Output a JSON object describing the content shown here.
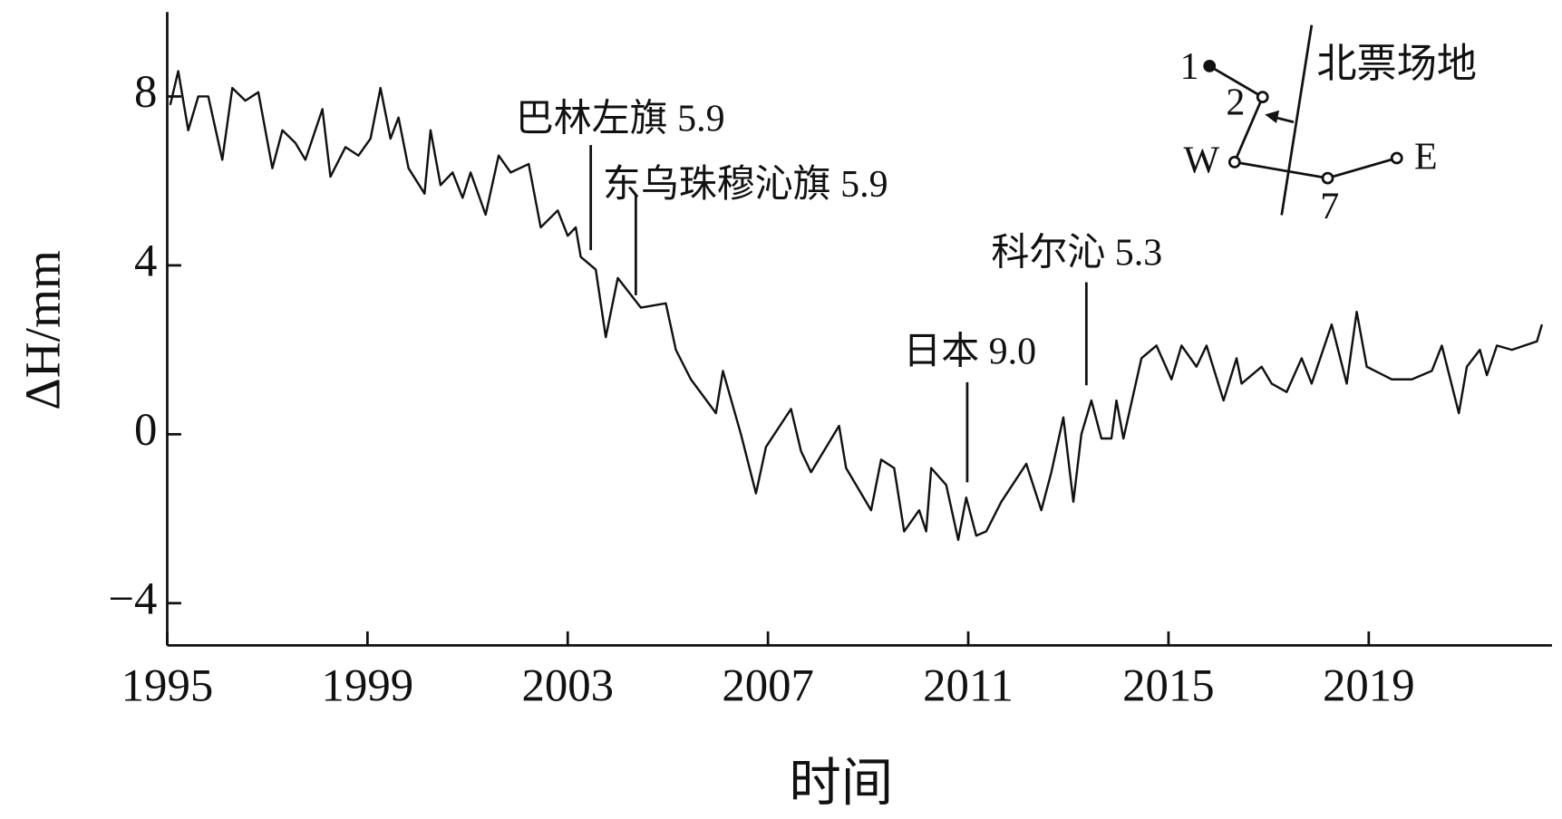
{
  "chart_data": {
    "type": "line",
    "xlabel": "时间",
    "ylabel": "ΔH/mm",
    "x": [
      1995.06,
      1995.22,
      1995.42,
      1995.62,
      1995.82,
      1996.1,
      1996.3,
      1996.56,
      1996.82,
      1997.1,
      1997.3,
      1997.56,
      1997.76,
      1998.1,
      1998.26,
      1998.56,
      1998.82,
      1999.06,
      1999.26,
      1999.46,
      1999.62,
      1999.82,
      1999.98,
      2000.14,
      2000.26,
      2000.46,
      2000.7,
      2000.9,
      2001.06,
      2001.36,
      2001.62,
      2001.86,
      2002.22,
      2002.46,
      2002.8,
      2003.0,
      2003.16,
      2003.26,
      2003.56,
      2003.76,
      2004.0,
      2004.46,
      2004.96,
      2005.16,
      2005.46,
      2005.96,
      2006.1,
      2006.46,
      2006.76,
      2006.96,
      2007.46,
      2007.66,
      2007.86,
      2008.42,
      2008.56,
      2009.06,
      2009.26,
      2009.52,
      2009.72,
      2010.02,
      2010.16,
      2010.26,
      2010.56,
      2010.8,
      2010.96,
      2011.16,
      2011.36,
      2011.66,
      2012.16,
      2012.46,
      2012.66,
      2012.9,
      2013.1,
      2013.26,
      2013.46,
      2013.66,
      2013.86,
      2013.96,
      2014.1,
      2014.46,
      2014.76,
      2015.06,
      2015.26,
      2015.56,
      2015.76,
      2016.1,
      2016.36,
      2016.46,
      2016.86,
      2017.06,
      2017.36,
      2017.66,
      2017.86,
      2018.26,
      2018.56,
      2018.76,
      2018.96,
      2019.46,
      2019.86,
      2020.26,
      2020.46,
      2020.8,
      2020.96,
      2021.22,
      2021.36,
      2021.56,
      2021.86,
      2022.36,
      2022.46
    ],
    "series": [
      {
        "color": "#111111",
        "values": [
          7.8,
          8.6,
          7.2,
          8.0,
          8.0,
          6.5,
          8.2,
          7.9,
          8.1,
          6.3,
          7.2,
          6.9,
          6.5,
          7.7,
          6.1,
          6.8,
          6.6,
          7.0,
          8.2,
          7.0,
          7.5,
          6.3,
          6.0,
          5.7,
          7.2,
          5.9,
          6.2,
          5.6,
          6.2,
          5.2,
          6.6,
          6.2,
          6.4,
          4.9,
          5.3,
          4.7,
          4.9,
          4.2,
          3.9,
          2.3,
          3.7,
          3.0,
          3.1,
          2.0,
          1.3,
          0.5,
          1.5,
          0.0,
          -1.4,
          -0.3,
          0.6,
          -0.4,
          -0.9,
          0.2,
          -0.8,
          -1.8,
          -0.6,
          -0.8,
          -2.3,
          -1.8,
          -2.3,
          -0.8,
          -1.2,
          -2.5,
          -1.5,
          -2.4,
          -2.3,
          -1.6,
          -0.7,
          -1.8,
          -0.9,
          0.4,
          -1.6,
          0.0,
          0.8,
          -0.1,
          -0.1,
          0.8,
          -0.1,
          1.8,
          2.1,
          1.3,
          2.1,
          1.6,
          2.1,
          0.8,
          1.8,
          1.2,
          1.6,
          1.2,
          1.0,
          1.8,
          1.2,
          2.6,
          1.2,
          2.9,
          1.6,
          1.3,
          1.3,
          1.5,
          2.1,
          0.5,
          1.6,
          2.0,
          1.4,
          2.1,
          2.0,
          2.2,
          2.6
        ]
      }
    ],
    "xlim": [
      1995,
      2022.66
    ],
    "ylim": [
      -5,
      10
    ],
    "xticks": [
      1995,
      1999,
      2003,
      2007,
      2011,
      2015,
      2019
    ],
    "yticks": [
      {
        "value": -4,
        "label": "−4"
      },
      0,
      4,
      8
    ],
    "annotations": [
      {
        "text": "巴林左旗 5.9",
        "x": 2003.46
      },
      {
        "text": "东乌珠穆沁旗 5.9",
        "x": 2004.36
      },
      {
        "text": "日本 9.0",
        "x": 2010.98
      },
      {
        "text": "科尔沁 5.3",
        "x": 2013.36
      }
    ],
    "inset": {
      "site": "北票场地",
      "labels": [
        "1",
        "2",
        "W",
        "7",
        "E"
      ]
    }
  }
}
